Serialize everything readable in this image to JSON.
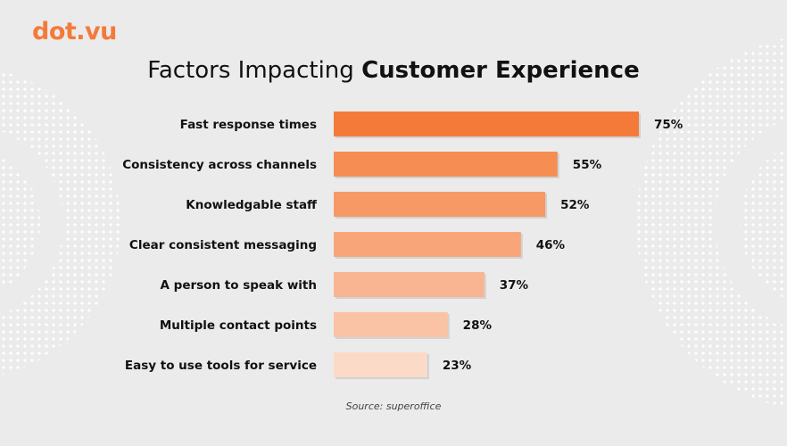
{
  "logo": {
    "text_a": "dot",
    "text_b": ".vu",
    "color": "#f47a3a"
  },
  "title": {
    "regular": "Factors Impacting ",
    "bold": "Customer Experience"
  },
  "source": "Source: superoffice",
  "colors": {
    "background": "#ebebeb",
    "bar_shades": [
      "#f47a3a",
      "#f68d53",
      "#f79964",
      "#f8a679",
      "#f9b592",
      "#fac3a5",
      "#fcdac8"
    ]
  },
  "chart_data": {
    "type": "bar",
    "orientation": "horizontal",
    "categories": [
      "Fast response times",
      "Consistency across channels",
      "Knowledgable staff",
      "Clear consistent messaging",
      "A person to speak with",
      "Multiple contact points",
      "Easy to use tools for service"
    ],
    "values": [
      75,
      55,
      52,
      46,
      37,
      28,
      23
    ],
    "value_labels": [
      "75%",
      "55%",
      "52%",
      "46%",
      "37%",
      "28%",
      "23%"
    ],
    "unit": "%",
    "xlim": [
      0,
      100
    ],
    "grid": false,
    "legend": "none"
  }
}
